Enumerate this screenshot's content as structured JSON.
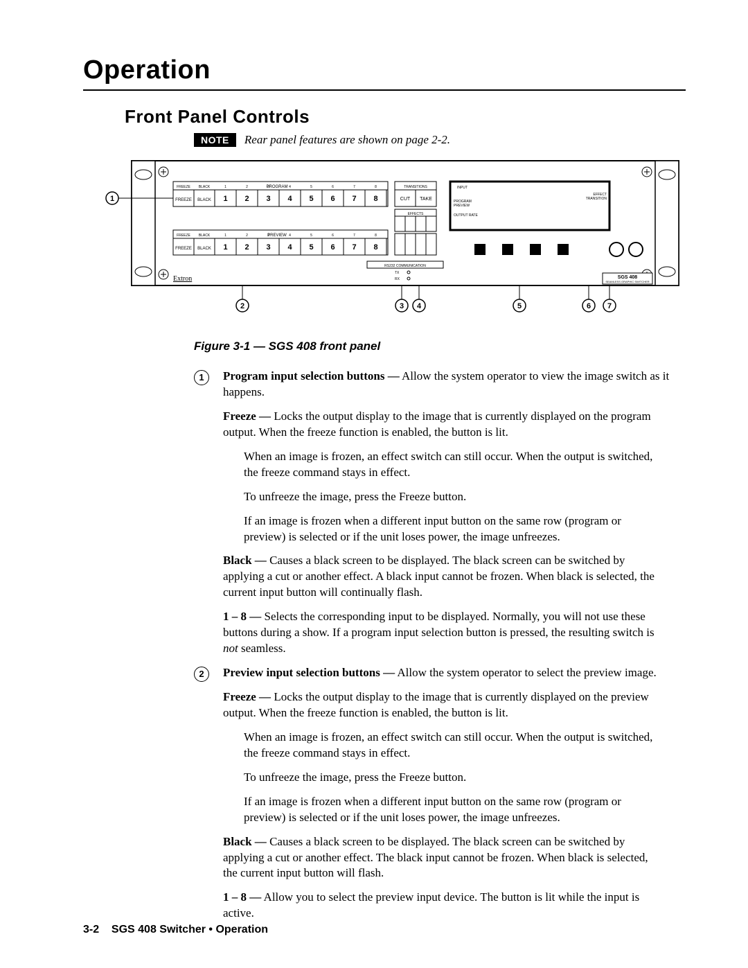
{
  "chapter_title": "Operation",
  "section_title": "Front Panel Controls",
  "note": {
    "badge": "NOTE",
    "text": "Rear panel features are shown on page 2-2."
  },
  "figure_caption": "Figure 3-1 — SGS 408 front panel",
  "panel": {
    "callouts": [
      "1",
      "2",
      "3",
      "4",
      "5",
      "6",
      "7"
    ],
    "row_labels": {
      "program": "PROGRAM",
      "preview": "PREVIEW"
    },
    "small_header_nums": [
      "1",
      "2",
      "3",
      "4",
      "5",
      "6",
      "7",
      "8"
    ],
    "buttons": [
      "FREEZE",
      "BLACK",
      "1",
      "2",
      "3",
      "4",
      "5",
      "6",
      "7",
      "8"
    ],
    "trans_header": "TRANSITIONS",
    "trans_sub": [
      "CUT",
      "TAKE"
    ],
    "cut": "CUT",
    "take": "TAKE",
    "effects_header": "EFFECTS",
    "effects_nums": [
      "1",
      "2",
      "3",
      "4"
    ],
    "input": "INPUT",
    "program_preview": "PROGRAM\nPREVIEW",
    "output_rate": "OUTPUT RATE",
    "effect_transition": "EFFECT\nTRANSITION",
    "rs232": "RS232 COMMUNICATION",
    "tx": "TX",
    "rx": "RX",
    "brand": "Extron",
    "model": "SGS 408",
    "subtitle": "SEAMLESS GRAPHIC SWITCHER"
  },
  "items": [
    {
      "num": "1",
      "lead": "Program input selection buttons —",
      "rest": " Allow the system operator to view the image switch as it happens.",
      "subs": [
        {
          "lead": "Freeze —",
          "rest": " Locks the output display to the image that is currently displayed on the program output.  When the freeze function is enabled, the button is lit.",
          "subsubs": [
            "When an image is frozen, an effect switch can still occur.  When the output is switched, the freeze command stays in effect.",
            "To unfreeze the image, press the Freeze button.",
            "If an image is frozen when a different input button on the same row (program or preview) is selected or if the unit loses power, the image unfreezes."
          ]
        },
        {
          "lead": "Black —",
          "rest": " Causes a black screen to be displayed.  The black screen can be switched by applying a cut or another effect.  A black input cannot be frozen.  When black is selected, the current input button will continually flash."
        },
        {
          "lead": "1 – 8 —",
          "rest_pre": " Selects the corresponding input to be displayed.  Normally, you will not use these buttons during a show.  If a program input selection button is pressed, the resulting switch is ",
          "em": "not",
          "rest_post": " seamless."
        }
      ]
    },
    {
      "num": "2",
      "lead": "Preview input selection buttons —",
      "rest": " Allow the system operator to select the preview image.",
      "subs": [
        {
          "lead": "Freeze —",
          "rest": " Locks the output display to the image that is currently displayed on the preview output.  When the freeze function is enabled, the button is lit.",
          "subsubs": [
            "When an image is frozen, an effect switch can still occur.  When the output is switched, the freeze command stays in effect.",
            "To unfreeze the image, press the Freeze button.",
            "If an image is frozen when a different input button on the same row (program or preview) is selected or if the unit loses power, the image unfreezes."
          ]
        },
        {
          "lead": "Black —",
          "rest": " Causes a black screen to be displayed.  The black screen can be switched by applying a cut or another effect.  The black input cannot be frozen.  When black is selected, the current input button will flash."
        },
        {
          "lead": "1 – 8 —",
          "rest": " Allow you to select the preview input device.  The button is lit while the input is active."
        }
      ]
    }
  ],
  "footer": {
    "page": "3-2",
    "doc": "SGS 408 Switcher • Operation"
  }
}
